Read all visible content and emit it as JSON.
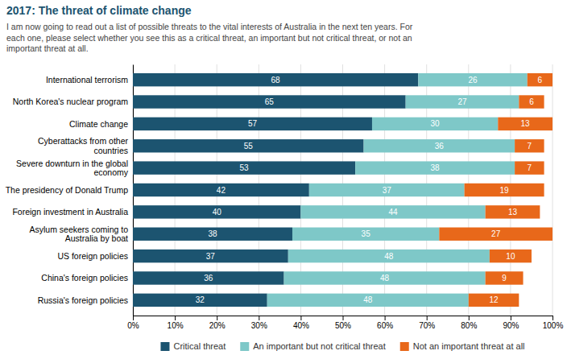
{
  "chart_data": {
    "type": "bar",
    "orientation": "horizontal",
    "stacked": true,
    "title": "2017: The threat of climate change",
    "subtitle": "I am now going to read out a list of possible threats to the vital interests of Australia in the next ten years. For\neach one, please select whether you see this as a critical threat, an important but not critical threat, or not an\nimportant threat at all.",
    "categories": [
      "International terrorism",
      "North Korea's nuclear program",
      "Climate change",
      "Cyberattacks from other\ncountries",
      "Severe downturn in the global\neconomy",
      "The presidency of Donald Trump",
      "Foreign investment in Australia",
      "Asylum seekers coming to\nAustralia by boat",
      "US foreign policies",
      "China's foreign policies",
      "Russia's foreign policies"
    ],
    "series": [
      {
        "name": "Critical threat",
        "color": "#1c5470",
        "values": [
          68,
          65,
          57,
          55,
          53,
          42,
          40,
          38,
          37,
          36,
          32
        ]
      },
      {
        "name": "An important but not critical threat",
        "color": "#7ec8c8",
        "values": [
          26,
          27,
          30,
          36,
          38,
          37,
          44,
          35,
          48,
          48,
          48
        ]
      },
      {
        "name": "Not an important threat at all",
        "color": "#e8681a",
        "values": [
          6,
          6,
          13,
          7,
          7,
          19,
          13,
          27,
          10,
          9,
          12
        ]
      }
    ],
    "xlim": [
      0,
      100
    ],
    "xticks": [
      {
        "value": 0,
        "label": "0%"
      },
      {
        "value": 10,
        "label": "10%"
      },
      {
        "value": 20,
        "label": "20%"
      },
      {
        "value": 30,
        "label": "30%"
      },
      {
        "value": 40,
        "label": "40%"
      },
      {
        "value": 50,
        "label": "50%"
      },
      {
        "value": 60,
        "label": "60%"
      },
      {
        "value": 70,
        "label": "70%"
      },
      {
        "value": 80,
        "label": "80%"
      },
      {
        "value": 90,
        "label": "90%"
      },
      {
        "value": 100,
        "label": "100%"
      }
    ],
    "grid": true,
    "data_labels": true,
    "legend": "bottom"
  }
}
